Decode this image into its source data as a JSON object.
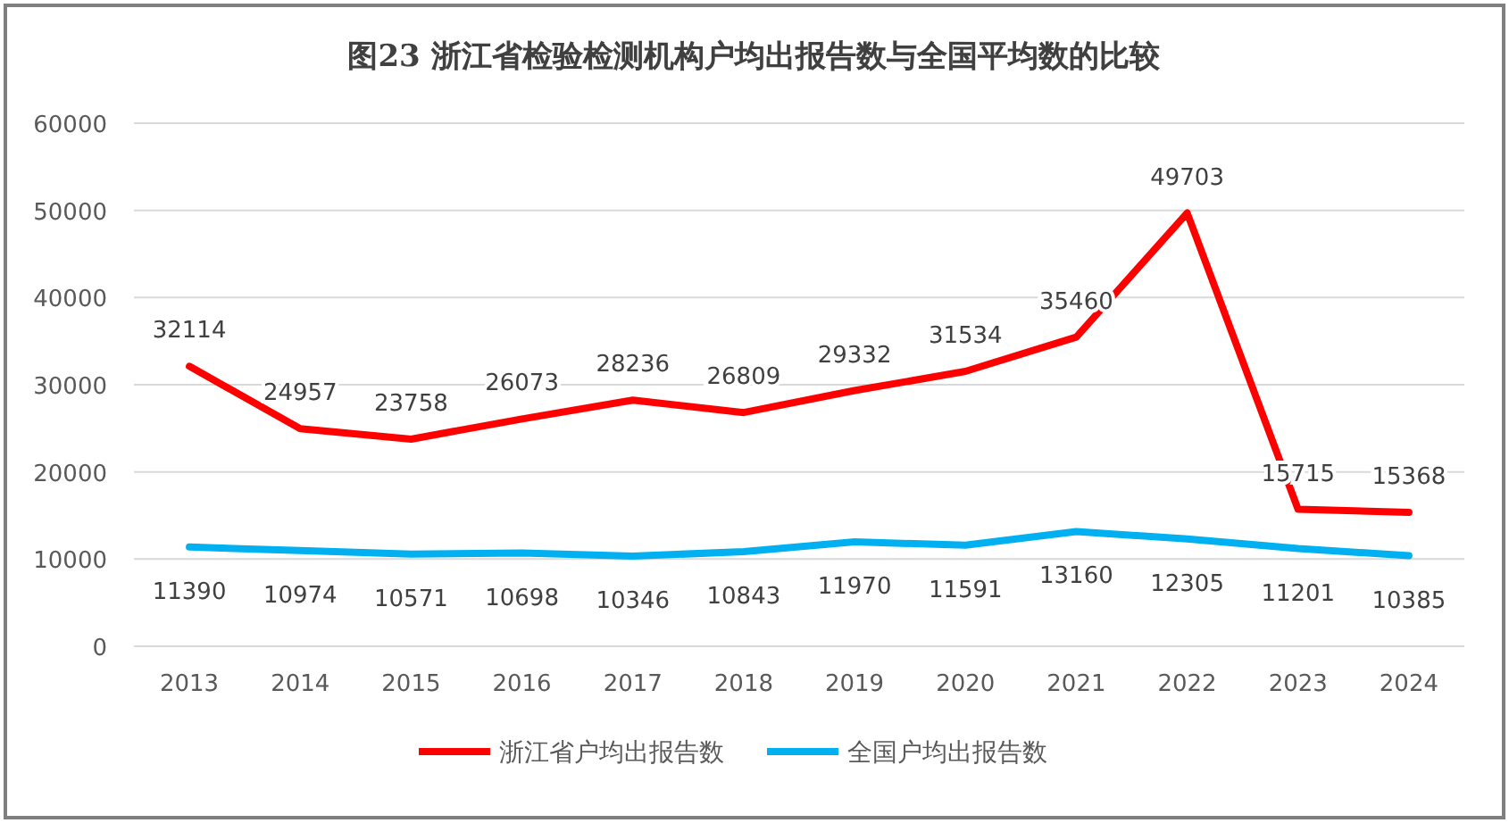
{
  "chart_data": {
    "type": "line",
    "title": "图23  浙江省检验检测机构户均出报告数与全国平均数的比较",
    "categories": [
      "2013",
      "2014",
      "2015",
      "2016",
      "2017",
      "2018",
      "2019",
      "2020",
      "2021",
      "2022",
      "2023",
      "2024"
    ],
    "series": [
      {
        "name": "浙江省户均出报告数",
        "color": "#ff0000",
        "values": [
          32114,
          24957,
          23758,
          26073,
          28236,
          26809,
          29332,
          31534,
          35460,
          49703,
          15715,
          15368
        ]
      },
      {
        "name": "全国户均出报告数",
        "color": "#00b0f0",
        "values": [
          11390,
          10974,
          10571,
          10698,
          10346,
          10843,
          11970,
          11591,
          13160,
          12305,
          11201,
          10385
        ]
      }
    ],
    "ylim": [
      0,
      60000
    ],
    "yticks": [
      0,
      10000,
      20000,
      30000,
      40000,
      50000,
      60000
    ],
    "grid": "y",
    "legend": "bottom",
    "data_labels": true,
    "marker": "none",
    "line_style": "solid"
  }
}
